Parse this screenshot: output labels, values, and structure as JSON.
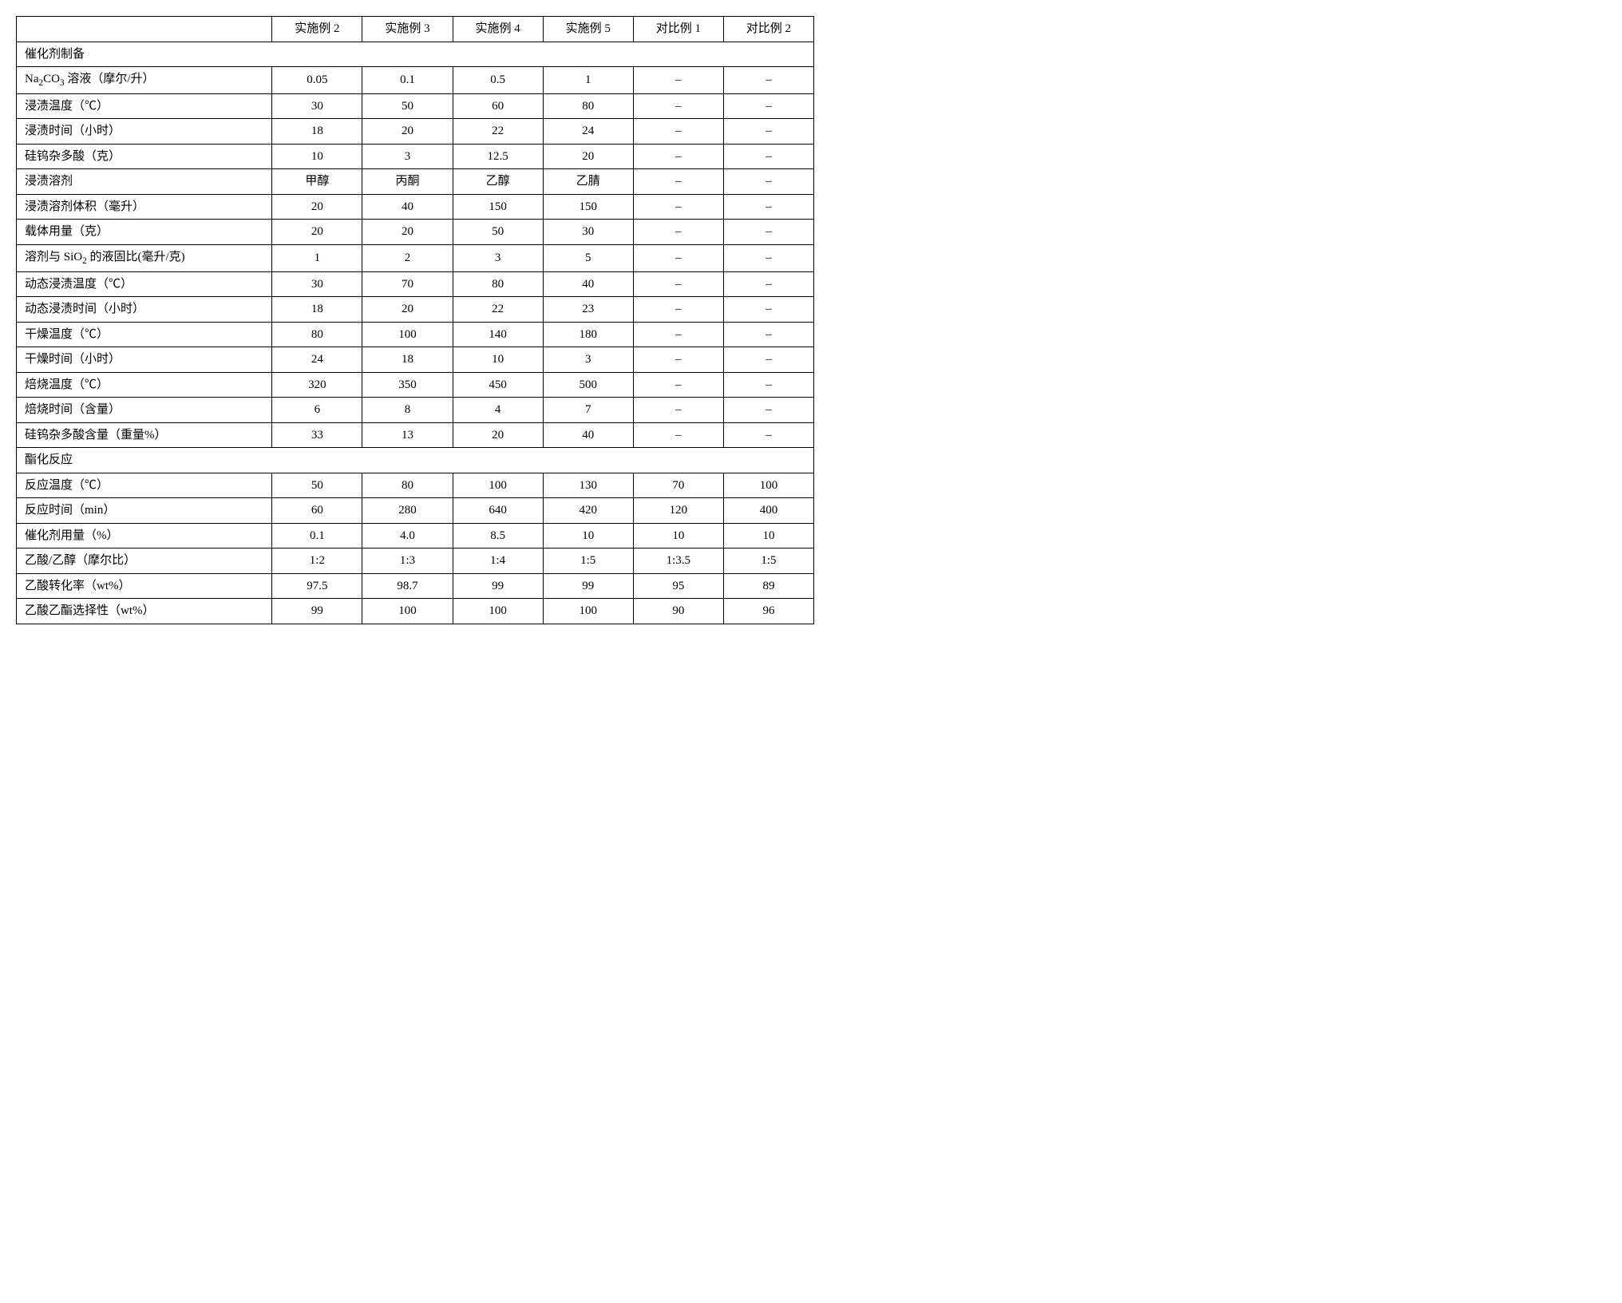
{
  "table": {
    "columns": [
      "",
      "实施例 2",
      "实施例 3",
      "实施例 4",
      "实施例 5",
      "对比例 1",
      "对比例 2"
    ],
    "col_widths": [
      "32%",
      "11.3%",
      "11.3%",
      "11.3%",
      "11.3%",
      "11.3%",
      "11.3%"
    ],
    "border_color": "#000000",
    "background_color": "#ffffff",
    "font_size": 15,
    "sections": [
      {
        "title": "催化剂制备",
        "rows": [
          {
            "label_html": "Na<sub>2</sub>CO<sub>3</sub> 溶液（摩尔/升）",
            "values": [
              "0.05",
              "0.1",
              "0.5",
              "1",
              "–",
              "–"
            ]
          },
          {
            "label": "浸渍温度（℃）",
            "values": [
              "30",
              "50",
              "60",
              "80",
              "–",
              "–"
            ]
          },
          {
            "label": "浸渍时间（小时）",
            "values": [
              "18",
              "20",
              "22",
              "24",
              "–",
              "–"
            ]
          },
          {
            "label": "硅钨杂多酸（克）",
            "values": [
              "10",
              "3",
              "12.5",
              "20",
              "–",
              "–"
            ]
          },
          {
            "label": "浸渍溶剂",
            "values": [
              "甲醇",
              "丙酮",
              "乙醇",
              "乙腈",
              "–",
              "–"
            ]
          },
          {
            "label": "浸渍溶剂体积（毫升）",
            "values": [
              "20",
              "40",
              "150",
              "150",
              "–",
              "–"
            ]
          },
          {
            "label": "载体用量（克）",
            "values": [
              "20",
              "20",
              "50",
              "30",
              "–",
              "–"
            ]
          },
          {
            "label_html": "溶剂与 SiO<sub>2</sub> 的液固比(毫升/克)",
            "values": [
              "1",
              "2",
              "3",
              "5",
              "–",
              "–"
            ]
          },
          {
            "label": "动态浸渍温度（℃）",
            "values": [
              "30",
              "70",
              "80",
              "40",
              "–",
              "–"
            ]
          },
          {
            "label": "动态浸渍时间（小时）",
            "values": [
              "18",
              "20",
              "22",
              "23",
              "–",
              "–"
            ]
          },
          {
            "label": "干燥温度（℃）",
            "values": [
              "80",
              "100",
              "140",
              "180",
              "–",
              "–"
            ]
          },
          {
            "label": "干燥时间（小时）",
            "values": [
              "24",
              "18",
              "10",
              "3",
              "–",
              "–"
            ]
          },
          {
            "label": "焙烧温度（℃）",
            "values": [
              "320",
              "350",
              "450",
              "500",
              "–",
              "–"
            ]
          },
          {
            "label": "焙烧时间（含量）",
            "values": [
              "6",
              "8",
              "4",
              "7",
              "–",
              "–"
            ]
          },
          {
            "label": "硅钨杂多酸含量（重量%）",
            "values": [
              "33",
              "13",
              "20",
              "40",
              "–",
              "–"
            ]
          }
        ]
      },
      {
        "title": "酯化反应",
        "rows": [
          {
            "label": "反应温度（℃）",
            "values": [
              "50",
              "80",
              "100",
              "130",
              "70",
              "100"
            ]
          },
          {
            "label": "反应时间（min）",
            "values": [
              "60",
              "280",
              "640",
              "420",
              "120",
              "400"
            ]
          },
          {
            "label": "催化剂用量（%）",
            "values": [
              "0.1",
              "4.0",
              "8.5",
              "10",
              "10",
              "10"
            ]
          },
          {
            "label": "乙酸/乙醇（摩尔比）",
            "values": [
              "1:2",
              "1:3",
              "1:4",
              "1:5",
              "1:3.5",
              "1:5"
            ]
          },
          {
            "label": "乙酸转化率（wt%）",
            "values": [
              "97.5",
              "98.7",
              "99",
              "99",
              "95",
              "89"
            ]
          },
          {
            "label": "乙酸乙酯选择性（wt%）",
            "values": [
              "99",
              "100",
              "100",
              "100",
              "90",
              "96"
            ]
          }
        ]
      }
    ]
  }
}
